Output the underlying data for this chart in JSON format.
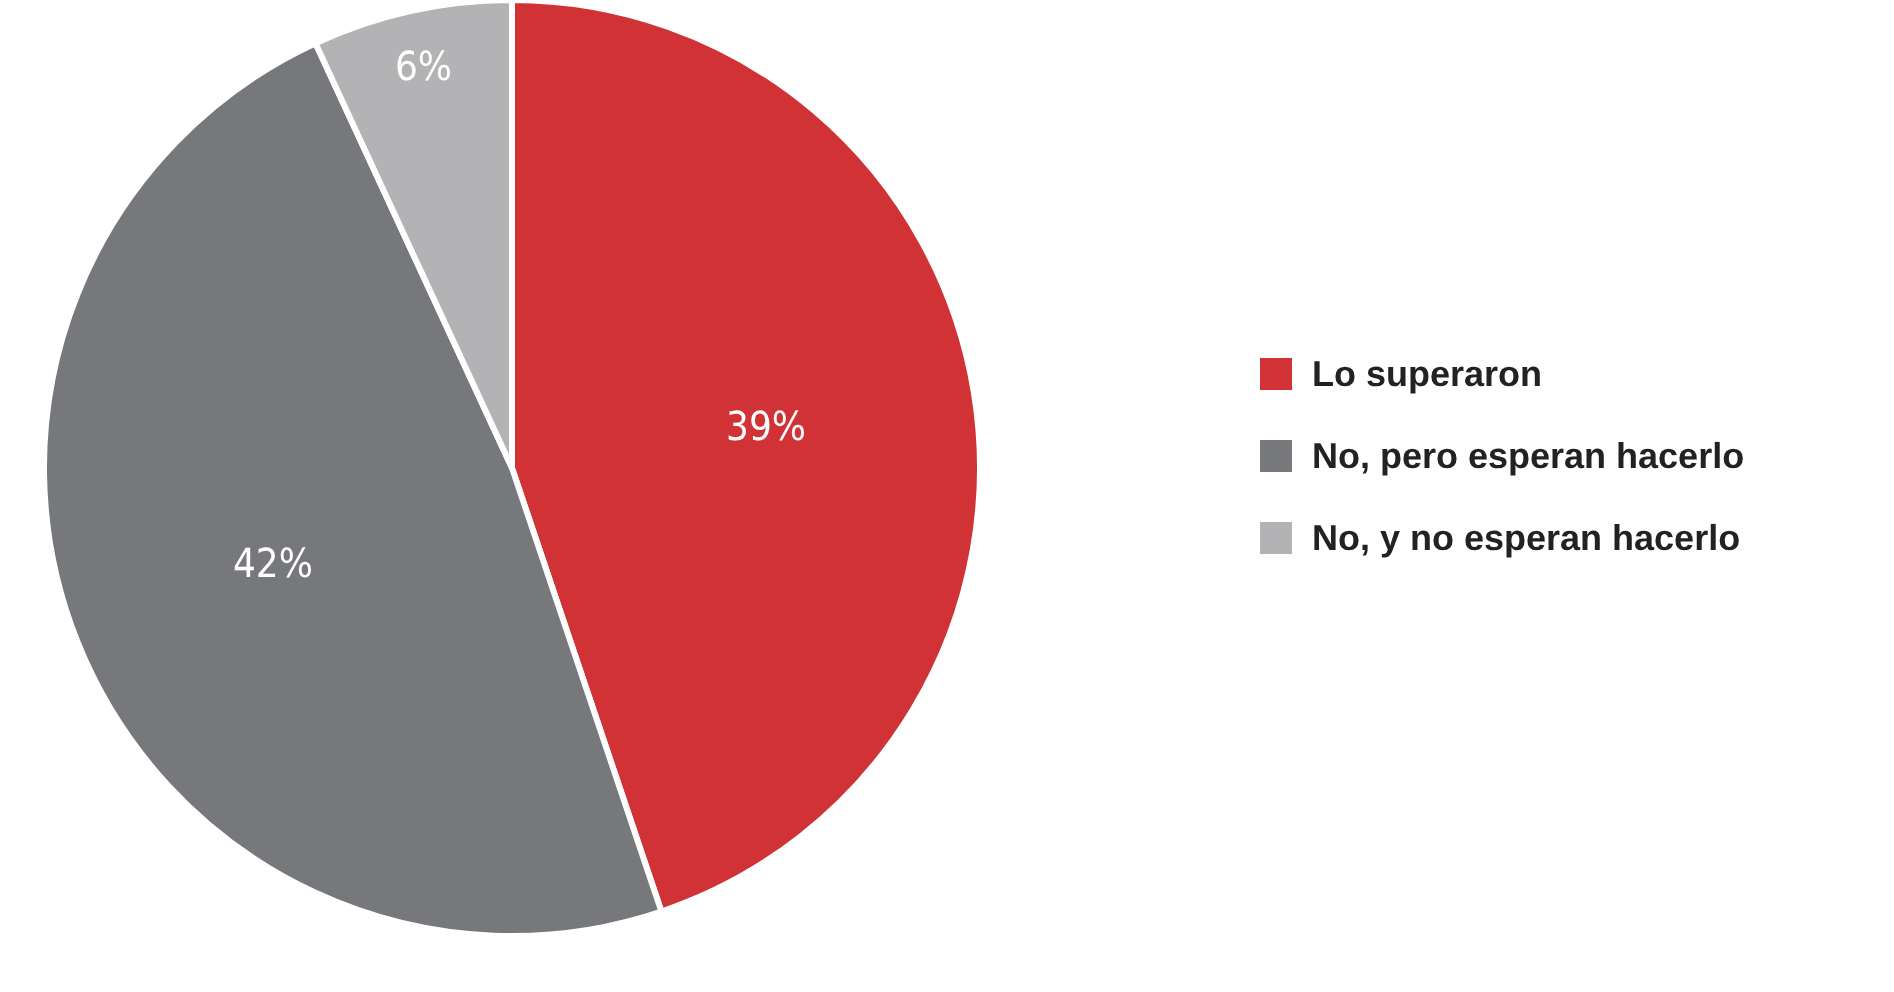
{
  "chart_data": {
    "type": "pie",
    "categories": [
      "Lo superaron",
      "No, pero esperan hacerlo",
      "No, y no esperan hacerlo"
    ],
    "values": [
      39,
      42,
      6
    ],
    "colors": [
      "#d03236",
      "#77787b",
      "#b3b3b5"
    ],
    "value_labels": [
      "39%",
      "42%",
      "6%"
    ],
    "legend": "right"
  }
}
